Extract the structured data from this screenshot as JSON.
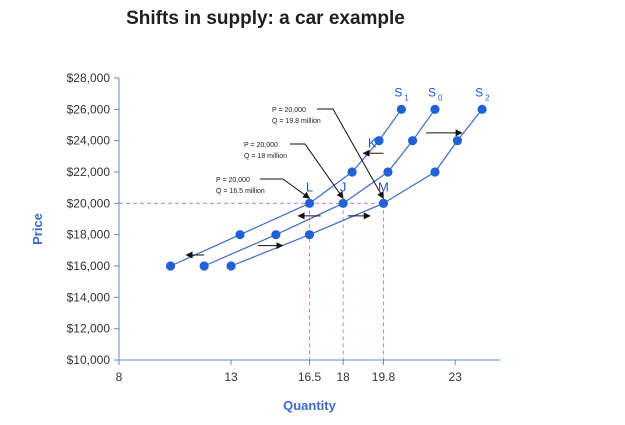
{
  "title": "Shifts in supply: a car example",
  "chart_data": {
    "type": "line",
    "title": "Shifts in supply: a car example",
    "xlabel": "Quantity",
    "ylabel": "Price",
    "xlim": [
      8,
      25
    ],
    "ylim": [
      10000,
      28000
    ],
    "x_ticks": [
      8,
      13,
      16.5,
      18,
      19.8,
      23
    ],
    "x_tick_labels": [
      "8",
      "13",
      "16.5",
      "18",
      "19.8",
      "23"
    ],
    "y_ticks": [
      10000,
      12000,
      14000,
      16000,
      18000,
      20000,
      22000,
      24000,
      26000,
      28000
    ],
    "y_tick_labels": [
      "$10,000",
      "$12,000",
      "$14,000",
      "$16,000",
      "$18,000",
      "$20,000",
      "$22,000",
      "$24,000",
      "$26,000",
      "$28,000"
    ],
    "series": [
      {
        "name": "S1",
        "label_main": "S",
        "label_sub": "1",
        "points": [
          [
            10.3,
            16000
          ],
          [
            13.4,
            18000
          ],
          [
            16.5,
            20000
          ],
          [
            18.4,
            22000
          ],
          [
            19.6,
            24000
          ],
          [
            20.6,
            26000
          ]
        ]
      },
      {
        "name": "S0",
        "label_main": "S",
        "label_sub": "0",
        "points": [
          [
            11.8,
            16000
          ],
          [
            15,
            18000
          ],
          [
            18,
            20000
          ],
          [
            20,
            22000
          ],
          [
            21.1,
            24000
          ],
          [
            22.1,
            26000
          ]
        ]
      },
      {
        "name": "S2",
        "label_main": "S",
        "label_sub": "2",
        "points": [
          [
            13,
            16000
          ],
          [
            16.5,
            18000
          ],
          [
            19.8,
            20000
          ],
          [
            22.1,
            22000
          ],
          [
            23.1,
            24000
          ],
          [
            24.2,
            26000
          ]
        ]
      }
    ],
    "point_labels": [
      {
        "text": "L",
        "x": 16.5,
        "y": 20000
      },
      {
        "text": "J",
        "x": 18,
        "y": 20000
      },
      {
        "text": "M",
        "x": 19.8,
        "y": 20000
      },
      {
        "text": "K",
        "x": 19.3,
        "y": 22800
      }
    ],
    "callouts": [
      {
        "lines": [
          "P = 20,000",
          "Q = 19.8 million"
        ],
        "target": [
          19.8,
          20000
        ]
      },
      {
        "lines": [
          "P = 20,000",
          "Q = 18 million"
        ],
        "target": [
          18,
          20000
        ]
      },
      {
        "lines": [
          "P = 20,000",
          "Q = 16.5 million"
        ],
        "target": [
          16.5,
          20000
        ]
      }
    ],
    "arrows": [
      {
        "from": [
          19.8,
          23200
        ],
        "to": [
          18.9,
          23200
        ]
      },
      {
        "from": [
          17,
          19200
        ],
        "to": [
          16,
          19200
        ]
      },
      {
        "from": [
          18.2,
          19200
        ],
        "to": [
          19.2,
          19200
        ]
      },
      {
        "from": [
          11.8,
          16700
        ],
        "to": [
          11,
          16700
        ]
      },
      {
        "from": [
          14.2,
          17300
        ],
        "to": [
          15.3,
          17300
        ]
      },
      {
        "from": [
          21.7,
          24500
        ],
        "to": [
          23.3,
          24500
        ]
      }
    ],
    "reference_lines": {
      "price": 20000,
      "quantities": [
        16.5,
        18,
        19.8
      ]
    },
    "colors": {
      "series": "#3a6cc6",
      "marker": "#2260d8",
      "reference": "#e879b0",
      "axis": "#5a8bd6",
      "label": "#1a57c8"
    }
  }
}
